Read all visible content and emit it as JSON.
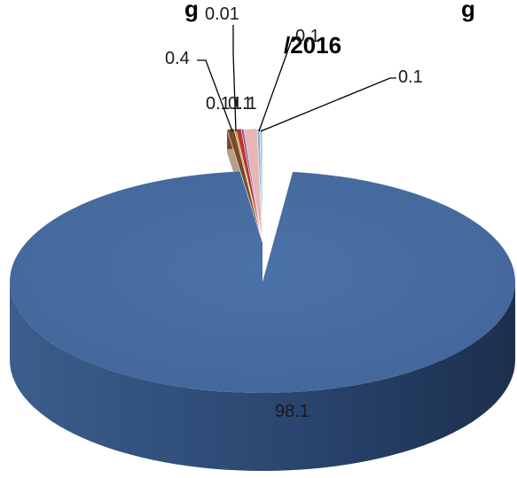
{
  "chart_data": {
    "type": "pie",
    "style": "3d",
    "title_line1": "g",
    "title_line1_right": "g",
    "title_line2": "/2016",
    "slices": [
      {
        "value": 98.1,
        "label": "98.1",
        "color": "#4a70a5"
      },
      {
        "value": 0.4,
        "label": "0.4",
        "color": "#7a4a2b"
      },
      {
        "value": 0.01,
        "label": "0.01",
        "color": "#9f9f2e"
      },
      {
        "value": 0.1,
        "label": "0.1",
        "color": "#c0342c"
      },
      {
        "value": 0.1,
        "label": "0.1",
        "color": "#8e5ea6"
      },
      {
        "value": 1.1,
        "label": "1.1",
        "color": "#e8b4b4"
      },
      {
        "value": 0.1,
        "label": "0.1",
        "color": "#7fb0c9"
      },
      {
        "value": 0.1,
        "label": "0.1",
        "color": "#aac3df"
      }
    ],
    "legend": "none"
  }
}
